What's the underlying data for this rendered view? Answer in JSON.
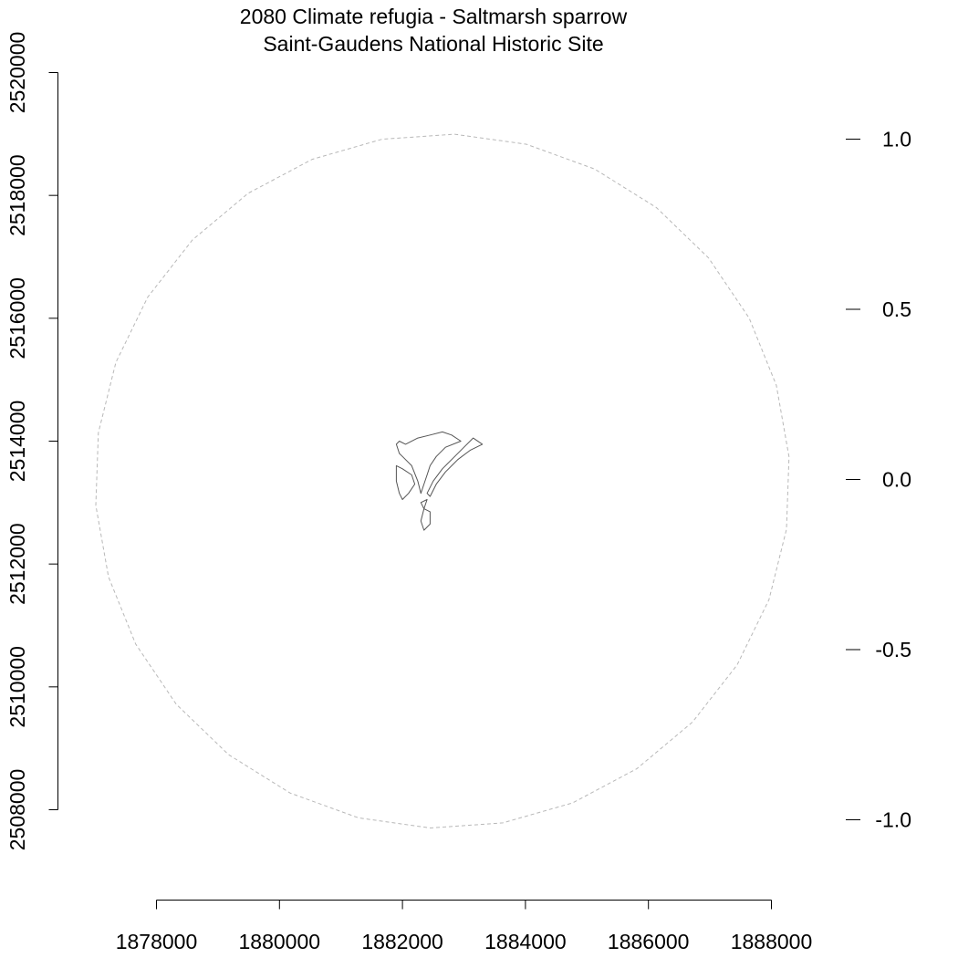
{
  "title": {
    "line1": "2080 Climate refugia - Saltmarsh sparrow",
    "line2": "Saint-Gaudens National Historic Site"
  },
  "colors": {
    "background": "#ffffff",
    "axis": "#000000",
    "buffer_ring": "#b8b8b8",
    "park_boundary": "#555555"
  },
  "chart_data": {
    "type": "map",
    "x_axis": {
      "position": "bottom",
      "range": [
        1878000,
        1888000
      ],
      "ticks": [
        1878000,
        1880000,
        1882000,
        1884000,
        1886000,
        1888000
      ],
      "tick_labels": [
        "1878000",
        "1880000",
        "1882000",
        "1884000",
        "1886000",
        "1888000"
      ]
    },
    "y_axis": {
      "position": "left",
      "range": [
        2508000,
        2520000
      ],
      "ticks": [
        2508000,
        2510000,
        2512000,
        2514000,
        2516000,
        2518000,
        2520000
      ],
      "tick_labels": [
        "2508000",
        "2510000",
        "2512000",
        "2514000",
        "2516000",
        "2518000",
        "2520000"
      ]
    },
    "legend_scale": {
      "position": "right",
      "range": [
        -1.0,
        1.0
      ],
      "ticks": [
        1.0,
        0.5,
        0.0,
        -0.5,
        -1.0
      ],
      "tick_labels": [
        "1.0",
        "0.5",
        "0.0",
        "-0.5",
        "-1.0"
      ]
    },
    "buffer_ring": {
      "style": "dashed",
      "center": [
        1882650,
        2513350
      ],
      "radius": 5650,
      "vertices": 30
    },
    "park_boundary": {
      "style": "solid",
      "polygons": [
        [
          [
            1881900,
            2513950
          ],
          [
            1881950,
            2514000
          ],
          [
            1882050,
            2513950
          ],
          [
            1882250,
            2514050
          ],
          [
            1882450,
            2514100
          ],
          [
            1882650,
            2514150
          ],
          [
            1882800,
            2514100
          ],
          [
            1882950,
            2514000
          ],
          [
            1882700,
            2513900
          ],
          [
            1882550,
            2513750
          ],
          [
            1882450,
            2513600
          ],
          [
            1882400,
            2513450
          ],
          [
            1882350,
            2513300
          ],
          [
            1882300,
            2513150
          ],
          [
            1882250,
            2513350
          ],
          [
            1882150,
            2513600
          ],
          [
            1882000,
            2513750
          ],
          [
            1881950,
            2513800
          ],
          [
            1881900,
            2513950
          ]
        ],
        [
          [
            1881900,
            2513600
          ],
          [
            1882000,
            2513550
          ],
          [
            1882150,
            2513450
          ],
          [
            1882200,
            2513300
          ],
          [
            1882100,
            2513150
          ],
          [
            1882000,
            2513050
          ],
          [
            1881950,
            2513150
          ],
          [
            1881900,
            2513350
          ],
          [
            1881900,
            2513600
          ]
        ],
        [
          [
            1882400,
            2513150
          ],
          [
            1882500,
            2513350
          ],
          [
            1882650,
            2513550
          ],
          [
            1882850,
            2513750
          ],
          [
            1883000,
            2513900
          ],
          [
            1883150,
            2514050
          ],
          [
            1883300,
            2513950
          ],
          [
            1883100,
            2513850
          ],
          [
            1882900,
            2513700
          ],
          [
            1882700,
            2513500
          ],
          [
            1882550,
            2513300
          ],
          [
            1882450,
            2513100
          ],
          [
            1882400,
            2513150
          ]
        ],
        [
          [
            1882300,
            2513000
          ],
          [
            1882350,
            2512900
          ],
          [
            1882300,
            2512700
          ],
          [
            1882350,
            2512550
          ],
          [
            1882450,
            2512650
          ],
          [
            1882450,
            2512850
          ],
          [
            1882350,
            2512900
          ],
          [
            1882400,
            2513050
          ],
          [
            1882300,
            2513000
          ]
        ]
      ]
    }
  }
}
